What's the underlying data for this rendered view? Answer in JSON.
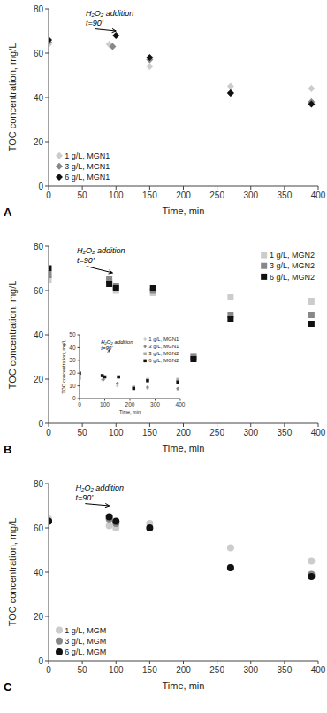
{
  "chart_data": [
    {
      "type": "scatter",
      "title": "A",
      "x_label": "Time, min",
      "y_label": "TOC concentration, mg/L",
      "xlim": [
        0,
        400
      ],
      "ylim": [
        0,
        80
      ],
      "xticks": [
        0,
        50,
        100,
        150,
        200,
        250,
        300,
        350,
        400
      ],
      "yticks": [
        0,
        20,
        40,
        60,
        80
      ],
      "grid": false,
      "legend": "lower left",
      "annotations": [
        {
          "text": "H₂O₂ addition\nt=90’",
          "x": 100,
          "y": 70,
          "text_x": 55,
          "text_y": 80
        }
      ],
      "series": [
        {
          "name": "1 g/L, MGN1",
          "color": "#cccccc",
          "marker": "diamond",
          "x": [
            0,
            90,
            150,
            270,
            390
          ],
          "values": [
            64,
            64,
            54,
            45,
            44
          ]
        },
        {
          "name": "3 g/L, MGN1",
          "color": "#888888",
          "marker": "diamond",
          "x": [
            0,
            95,
            150,
            270,
            390
          ],
          "values": [
            65,
            63,
            57,
            42,
            38
          ]
        },
        {
          "name": "6 g/L, MGN1",
          "color": "#111111",
          "marker": "diamond",
          "x": [
            0,
            100,
            150,
            270,
            390
          ],
          "values": [
            66,
            68,
            58,
            42,
            37
          ]
        }
      ]
    },
    {
      "type": "scatter",
      "title": "B",
      "x_label": "Time, min",
      "y_label": "TOC concentration, mg/L",
      "xlim": [
        0,
        400
      ],
      "ylim": [
        0,
        80
      ],
      "xticks": [
        0,
        50,
        100,
        150,
        200,
        250,
        300,
        350,
        400
      ],
      "yticks": [
        0,
        20,
        40,
        60,
        80
      ],
      "grid": false,
      "legend": "upper right",
      "annotations": [
        {
          "text": "H₂O₂ addition\nt=90’",
          "x": 95,
          "y": 68,
          "text_x": 42,
          "text_y": 80
        }
      ],
      "series": [
        {
          "name": "1 g/L, MGN2",
          "color": "#cccccc",
          "marker": "square",
          "x": [
            0,
            90,
            100,
            155,
            215,
            270,
            390
          ],
          "values": [
            65,
            64,
            60,
            59,
            30,
            57,
            55
          ]
        },
        {
          "name": "3 g/L, MGN2",
          "color": "#888888",
          "marker": "square",
          "x": [
            0,
            90,
            100,
            155,
            215,
            270,
            390
          ],
          "values": [
            67,
            65,
            62,
            60,
            30,
            49,
            49
          ]
        },
        {
          "name": "6 g/L, MGN2",
          "color": "#111111",
          "marker": "square",
          "x": [
            0,
            90,
            100,
            155,
            215,
            270,
            390
          ],
          "values": [
            70,
            63,
            61,
            61,
            29,
            47,
            45
          ]
        }
      ],
      "inset": {
        "type": "scatter",
        "x_label": "Time, min",
        "y_label": "TOC concentration, mg/L",
        "xlim": [
          0,
          400
        ],
        "ylim": [
          0,
          50
        ],
        "xticks": [
          0,
          100,
          200,
          300,
          400
        ],
        "yticks": [
          0,
          10,
          20,
          30,
          40,
          50
        ],
        "grid": false,
        "legend": "upper right",
        "annotations": [
          {
            "text": "H₂O₂ addition\nt=90’",
            "x": 120,
            "y": 38,
            "text_x": 85,
            "text_y": 47
          }
        ],
        "series": [
          {
            "name": "1 g/L, MGN1",
            "color": "#cccccc",
            "marker": "diamond",
            "x": [
              0,
              90,
              150,
              270,
              390
            ],
            "values": [
              15,
              15,
              10,
              8,
              7
            ]
          },
          {
            "name": "3 g/L, MGN1",
            "color": "#888888",
            "marker": "diamond",
            "x": [
              0,
              95,
              150,
              270,
              390
            ],
            "values": [
              16,
              15,
              12,
              9,
              8
            ]
          },
          {
            "name": "3 g/L, MGN2",
            "color": "#aaaaaa",
            "marker": "square",
            "x": [
              0,
              90,
              100,
              155,
              215,
              270,
              390
            ],
            "values": [
              18,
              18,
              17,
              17,
              9,
              15,
              15
            ]
          },
          {
            "name": "6 g/L, MGN2",
            "color": "#111111",
            "marker": "square",
            "x": [
              0,
              90,
              100,
              155,
              215,
              270,
              390
            ],
            "values": [
              20,
              18,
              17,
              17,
              8,
              14,
              13
            ]
          }
        ]
      }
    },
    {
      "type": "scatter",
      "title": "C",
      "x_label": "Time, min",
      "y_label": "TOC concentration, mg/L",
      "xlim": [
        0,
        400
      ],
      "ylim": [
        0,
        80
      ],
      "xticks": [
        0,
        50,
        100,
        150,
        200,
        250,
        300,
        350,
        400
      ],
      "yticks": [
        0,
        20,
        40,
        60,
        80
      ],
      "grid": false,
      "legend": "lower left",
      "annotations": [
        {
          "text": "H₂O₂ addition\nt=90’",
          "x": 90,
          "y": 70,
          "text_x": 40,
          "text_y": 80
        }
      ],
      "series": [
        {
          "name": "1 g/L, MGM",
          "color": "#cccccc",
          "marker": "circle",
          "x": [
            0,
            90,
            100,
            150,
            270,
            390
          ],
          "values": [
            64,
            61,
            60,
            62,
            51,
            45
          ]
        },
        {
          "name": "3 g/L, MGM",
          "color": "#888888",
          "marker": "circle",
          "x": [
            0,
            90,
            100,
            270,
            390
          ],
          "values": [
            63,
            64,
            62,
            42,
            39
          ]
        },
        {
          "name": "6 g/L, MGM",
          "color": "#111111",
          "marker": "circle",
          "x": [
            0,
            90,
            100,
            150,
            270,
            390
          ],
          "values": [
            63,
            65,
            63,
            60,
            42,
            38
          ]
        }
      ]
    }
  ]
}
